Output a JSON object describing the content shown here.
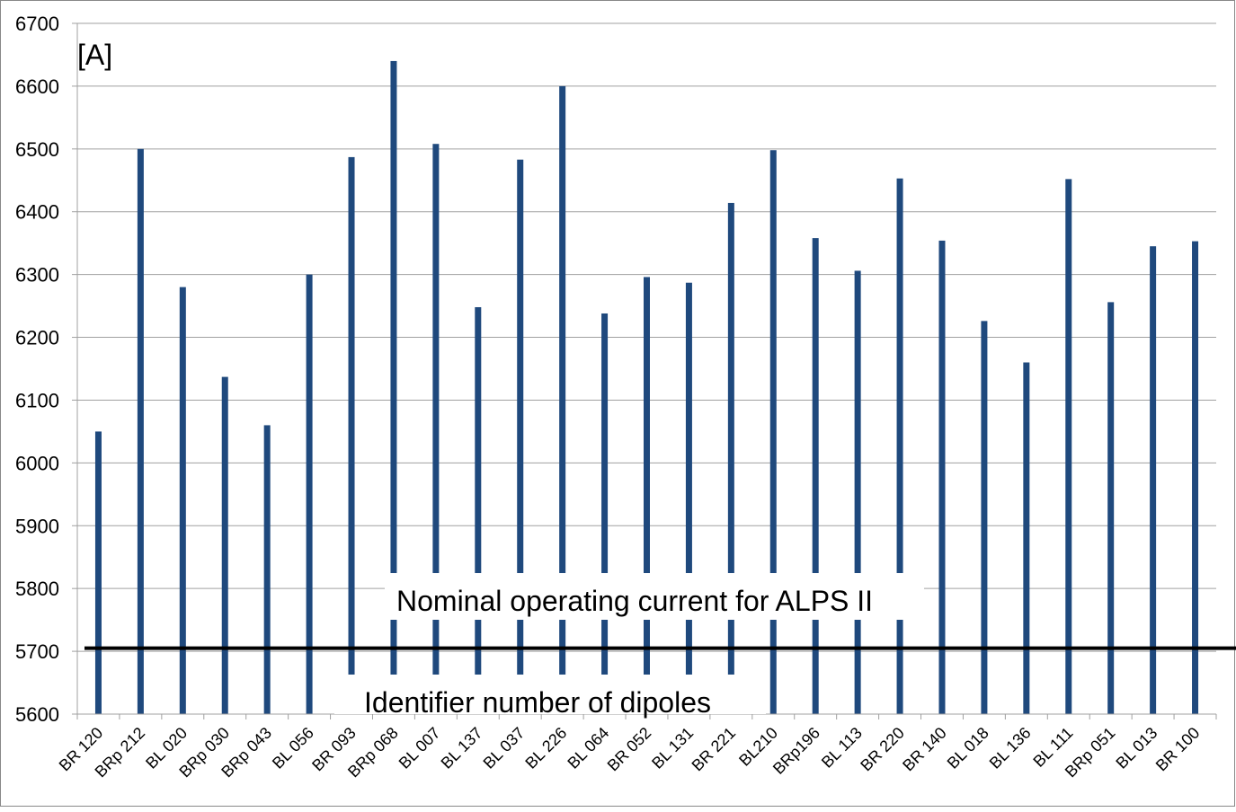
{
  "chart_data": {
    "type": "bar",
    "title": "",
    "xlabel": "Identifier number of dipoles",
    "ylabel": "[A]",
    "ylim": [
      5600,
      6700
    ],
    "yticks": [
      5600,
      5700,
      5800,
      5900,
      6000,
      6100,
      6200,
      6300,
      6400,
      6500,
      6600,
      6700
    ],
    "grid": true,
    "legend": "none",
    "bar_color": "#1f497d",
    "categories": [
      "BR 120",
      "BRp 212",
      "BL 020",
      "BRp  030",
      "BRp 043",
      "BL 056",
      "BR 093",
      "BRp 068",
      "BL 007",
      "BL 137",
      "BL 037",
      "BL 226",
      "BL 064",
      "BR 052",
      "BL 131",
      "BR 221",
      "BL210",
      "BRp196",
      "BL 113",
      "BR 220",
      "BR 140",
      "BL 018",
      "BL 136",
      "BL 111",
      "BRp 051",
      "BL 013",
      "BR 100"
    ],
    "values": [
      6050,
      6500,
      6280,
      6137,
      6060,
      6300,
      6487,
      6640,
      6508,
      6248,
      6483,
      6600,
      6238,
      6296,
      6287,
      6414,
      6498,
      6358,
      6306,
      6453,
      6354,
      6226,
      6160,
      6452,
      6256,
      6345,
      6353
    ],
    "annotations": [
      {
        "text": "Nominal operating current for ALPS II",
        "value": 5705,
        "line_color": "#000000"
      }
    ]
  }
}
